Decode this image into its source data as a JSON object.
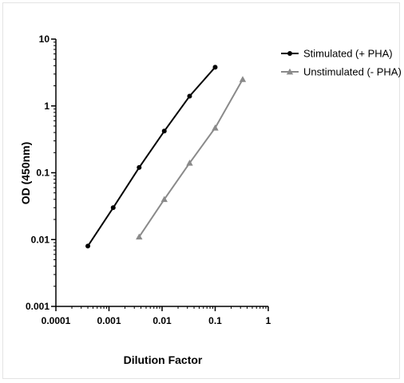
{
  "chart_data": {
    "type": "line",
    "xlabel": "Dilution Factor",
    "ylabel": "OD (450nm)",
    "x_scale": "log",
    "y_scale": "log",
    "xlim": [
      0.0001,
      1
    ],
    "ylim": [
      0.001,
      10
    ],
    "x_ticks": [
      {
        "value": 0.0001,
        "label": "0.0001"
      },
      {
        "value": 0.001,
        "label": "0.001"
      },
      {
        "value": 0.01,
        "label": "0.01"
      },
      {
        "value": 0.1,
        "label": "0.1"
      },
      {
        "value": 1,
        "label": "1"
      }
    ],
    "y_ticks": [
      {
        "value": 0.001,
        "label": "0.001"
      },
      {
        "value": 0.01,
        "label": "0.01"
      },
      {
        "value": 0.1,
        "label": "0.1"
      },
      {
        "value": 1,
        "label": "1"
      },
      {
        "value": 10,
        "label": "10"
      }
    ],
    "grid": false,
    "legend_position": "top-right",
    "series": [
      {
        "name": "Stimulated (+ PHA)",
        "color": "#000000",
        "marker": "circle",
        "x": [
          0.0004,
          0.0012,
          0.0037,
          0.011,
          0.033,
          0.1
        ],
        "y": [
          0.008,
          0.03,
          0.12,
          0.42,
          1.4,
          3.8
        ]
      },
      {
        "name": "Unstimulated (- PHA)",
        "color": "#8a8a8a",
        "marker": "triangle",
        "x": [
          0.0037,
          0.011,
          0.033,
          0.1,
          0.33
        ],
        "y": [
          0.011,
          0.04,
          0.14,
          0.47,
          2.5
        ]
      }
    ]
  }
}
